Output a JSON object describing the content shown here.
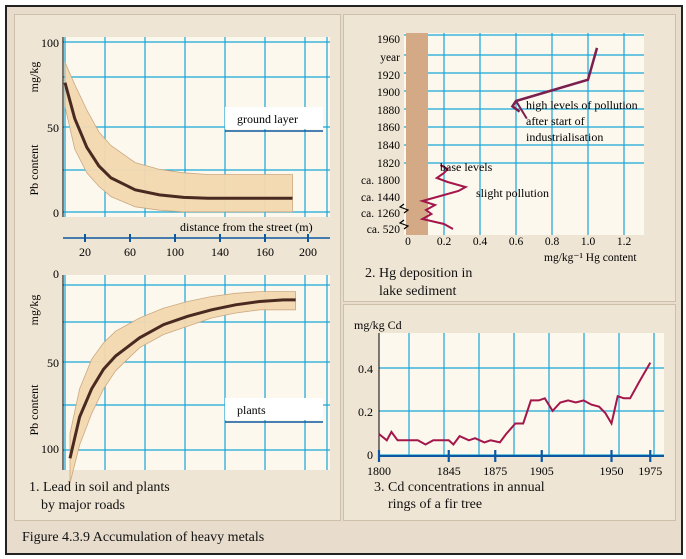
{
  "figure_caption": "Figure 4.3.9 Accumulation of heavy metals",
  "colors": {
    "grid": "#1aa6d8",
    "curve": "#4a2a20",
    "band": "#f4d9b0",
    "hg_line": "#7b1f4f",
    "cd_line": "#a3164a",
    "sediment_bar": "#d4aa86",
    "axis_blue": "#0d58a0"
  },
  "chart_data": [
    {
      "type": "line",
      "panel": "soil",
      "ylabel": "Pb content",
      "yunit": "mg/kg",
      "xlabel": "distance from the street (m)",
      "x_ticks": [
        "20",
        "60",
        "100",
        "140",
        "160",
        "200"
      ],
      "y_ticks": [
        "100",
        "50",
        "0"
      ],
      "legend_label": "ground layer",
      "series": [
        {
          "x": [
            2,
            10,
            20,
            30,
            40,
            60,
            80,
            100,
            120,
            140,
            160,
            180,
            190
          ],
          "y": [
            79,
            58,
            41,
            30,
            23,
            16,
            13,
            11.5,
            11,
            11,
            11,
            11,
            11
          ]
        }
      ],
      "band_upper": [
        91,
        78,
        63,
        50,
        42,
        32,
        28,
        26,
        25,
        25,
        25,
        25,
        25
      ],
      "band_lower": [
        65,
        40,
        26,
        18,
        12,
        6,
        4,
        3,
        3,
        3,
        3,
        3,
        3
      ]
    },
    {
      "type": "line",
      "panel": "plants",
      "ylabel": "Pb content",
      "yunit": "mg/kg",
      "y_ticks": [
        "0",
        "50",
        "100"
      ],
      "legend_label": "plants",
      "caption": [
        "1. Lead in soil and plants",
        "by major roads"
      ],
      "series": [
        {
          "x": [
            2,
            10,
            20,
            30,
            40,
            60,
            80,
            100,
            120,
            140,
            160,
            180,
            190
          ],
          "y": [
            105,
            80,
            63,
            51,
            43,
            32,
            24,
            19,
            15,
            12,
            10,
            9,
            9
          ]
        }
      ],
      "band_upper": [
        120,
        97,
        78,
        63,
        52,
        38,
        30,
        25,
        20,
        17,
        15,
        15,
        15
      ],
      "band_lower": [
        90,
        63,
        45,
        35,
        28,
        20,
        14,
        10,
        7,
        5,
        4,
        4,
        4
      ]
    },
    {
      "type": "line",
      "panel": "hg",
      "xlabel": "mg/kg⁻¹ Hg content",
      "x_ticks": [
        "0",
        "0.2",
        "0.4",
        "0.6",
        "0.8",
        "1.0",
        "1.2"
      ],
      "y_ticks": [
        "1960",
        "year",
        "1920",
        "1900",
        "1880",
        "1860",
        "1840",
        "1820",
        "ca. 1800",
        "ca. 1440",
        "ca. 1260",
        "ca. 520"
      ],
      "annotations": [
        {
          "text": [
            "high levels of pollution",
            "after start of",
            "industrialisation"
          ]
        },
        {
          "text": [
            "base levels"
          ]
        },
        {
          "text": [
            "slight pollution"
          ]
        }
      ],
      "caption": [
        "2. Hg deposition in",
        "lake sediment"
      ],
      "series": [
        {
          "x": [
            0.25,
            0.2,
            0.08,
            0.13,
            0.1,
            0.15,
            0.08,
            0.16,
            0.28,
            0.32,
            0.22,
            0.16,
            0.2,
            0.22,
            0.18
          ],
          "y": [
            "ca. 520",
            "ca. 520",
            "ca. 520",
            "ca. 520",
            "ca. 1260",
            "ca. 1260",
            "ca. 1260",
            "ca. 1440",
            "ca. 1440",
            "ca. 1440",
            "ca. 1440",
            "ca. 1800",
            "ca. 1800",
            "ca. 1800",
            "ca. 1800"
          ]
        },
        {
          "x": [
            0.62,
            0.58,
            0.6,
            1.0,
            1.05
          ],
          "y": [
            1878,
            1884,
            1890,
            1914,
            1950
          ]
        }
      ]
    },
    {
      "type": "line",
      "panel": "cd",
      "ylabel": "mg/kg Cd",
      "x_ticks": [
        "1800",
        "1845",
        "1875",
        "1905",
        "1950",
        "1975"
      ],
      "y_ticks": [
        "0",
        "0.2",
        "0.4"
      ],
      "ylim": [
        0,
        0.5
      ],
      "xlim": [
        1800,
        1980
      ],
      "caption": [
        "3. Cd concentrations in annual",
        "rings of a fir tree"
      ],
      "series": [
        {
          "x": [
            1800,
            1805,
            1808,
            1812,
            1818,
            1825,
            1830,
            1835,
            1840,
            1845,
            1848,
            1852,
            1858,
            1862,
            1868,
            1872,
            1878,
            1882,
            1888,
            1893,
            1898,
            1903,
            1907,
            1912,
            1917,
            1922,
            1927,
            1932,
            1937,
            1942,
            1946,
            1950,
            1954,
            1958,
            1962,
            1968,
            1975
          ],
          "y": [
            0.1,
            0.07,
            0.11,
            0.07,
            0.07,
            0.07,
            0.05,
            0.07,
            0.07,
            0.07,
            0.05,
            0.09,
            0.07,
            0.08,
            0.06,
            0.07,
            0.06,
            0.1,
            0.15,
            0.15,
            0.26,
            0.26,
            0.27,
            0.21,
            0.25,
            0.26,
            0.25,
            0.26,
            0.24,
            0.23,
            0.2,
            0.15,
            0.28,
            0.27,
            0.27,
            0.35,
            0.44
          ]
        }
      ]
    }
  ]
}
